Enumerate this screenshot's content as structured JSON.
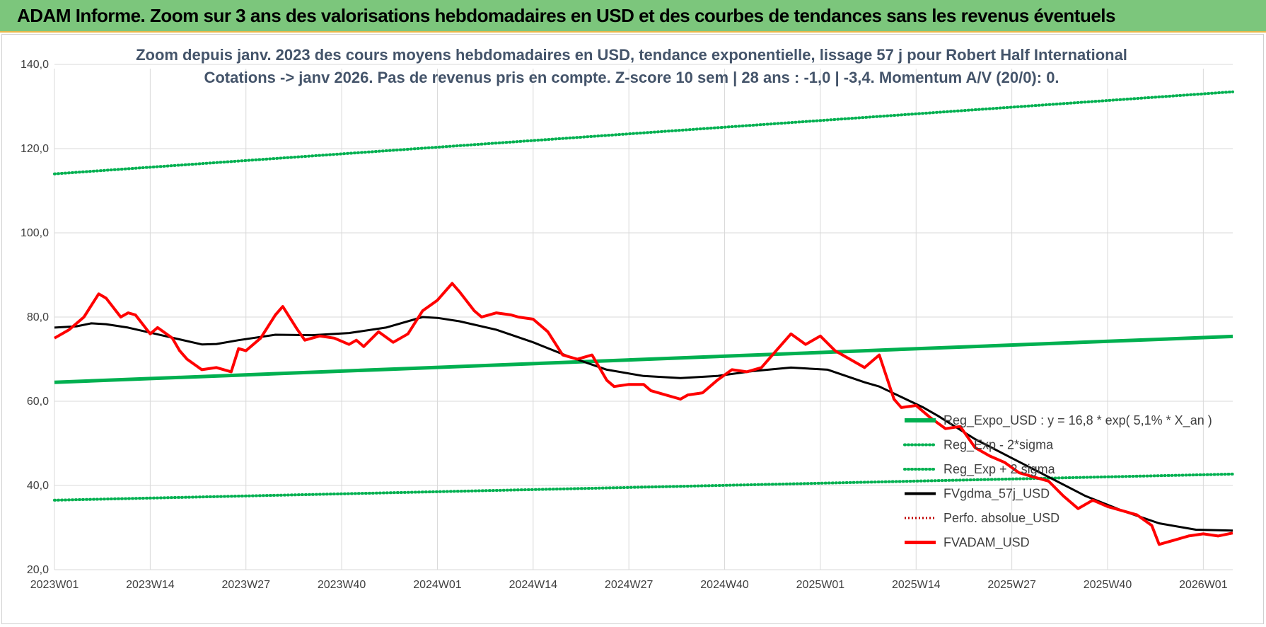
{
  "header": {
    "title": "ADAM Informe. Zoom sur 3 ans des valorisations hebdomadaires en USD et des courbes de tendances sans les revenus éventuels"
  },
  "colors": {
    "header_bg": "#7cc67c",
    "reg_green": "#00b050",
    "fvgdma_black": "#000000",
    "fvadam_red": "#ff0000",
    "perfo_red": "#c00000",
    "grid": "#d9d9d9",
    "title": "#44546a"
  },
  "chart_data": {
    "type": "line",
    "title_line1": "Zoom depuis janv. 2023 des cours moyens hebdomadaires en USD, tendance exponentielle, lissage 57 j pour Robert Half International",
    "title_line2": "Cotations -> janv 2026. Pas de revenus pris en compte. Z-score 10 sem | 28 ans : -1,0 | -3,4. Momentum A/V (20/0): 0.",
    "ylim": [
      20,
      140
    ],
    "y_ticks": [
      "20,0",
      "40,0",
      "60,0",
      "80,0",
      "100,0",
      "120,0",
      "140,0"
    ],
    "x_ticks": [
      "2023W01",
      "2023W14",
      "2023W27",
      "2023W40",
      "2024W01",
      "2024W14",
      "2024W27",
      "2024W40",
      "2025W01",
      "2025W14",
      "2025W27",
      "2025W40",
      "2026W01"
    ],
    "x_range_weeks": [
      0,
      160
    ],
    "legend_position": "right",
    "legend": [
      "Reg_Expo_USD : y = 16,8 * exp( 5,1% *  X_an )",
      "Reg_Exp - 2*sigma",
      "Reg_Exp + 2 sigma",
      "FVgdma_57j_USD",
      "Perfo. absolue_USD",
      "FVADAM_USD"
    ],
    "series": [
      {
        "name": "Reg_Expo_USD",
        "style": "solid-thick-green",
        "x": [
          0,
          160
        ],
        "values": [
          64.5,
          75.4
        ]
      },
      {
        "name": "Reg_Exp - 2*sigma",
        "style": "dotted-green",
        "x": [
          0,
          160
        ],
        "values": [
          36.5,
          42.7
        ]
      },
      {
        "name": "Reg_Exp + 2 sigma",
        "style": "dotted-green",
        "x": [
          0,
          160
        ],
        "values": [
          114.0,
          133.5
        ]
      },
      {
        "name": "FVgdma_57j_USD",
        "style": "solid-black",
        "x": [
          0,
          3,
          5,
          7,
          10,
          15,
          20,
          22,
          25,
          30,
          35,
          40,
          45,
          50,
          52,
          55,
          60,
          65,
          70,
          75,
          80,
          85,
          90,
          95,
          100,
          105,
          110,
          112,
          115,
          118,
          120,
          125,
          130,
          135,
          140,
          145,
          150,
          155,
          160
        ],
        "values": [
          77.5,
          77.8,
          78.5,
          78.3,
          77.5,
          75.5,
          73.5,
          73.6,
          74.5,
          75.8,
          75.7,
          76.2,
          77.5,
          80.0,
          79.8,
          79.0,
          77.0,
          74.0,
          70.5,
          67.5,
          66.0,
          65.5,
          66.0,
          67.2,
          68.0,
          67.5,
          64.5,
          63.5,
          61.0,
          58.5,
          56.5,
          51.0,
          46.5,
          42.0,
          37.5,
          34.0,
          31.0,
          29.5,
          29.3
        ]
      },
      {
        "name": "FVADAM_USD",
        "style": "solid-thick-red",
        "x": [
          0,
          2,
          4,
          6,
          7,
          9,
          10,
          11,
          13,
          14,
          16,
          17,
          18,
          20,
          22,
          24,
          25,
          26,
          28,
          30,
          31,
          33,
          34,
          36,
          38,
          40,
          41,
          42,
          44,
          46,
          48,
          50,
          52,
          54,
          55,
          57,
          58,
          60,
          62,
          63,
          65,
          67,
          69,
          71,
          73,
          75,
          76,
          78,
          80,
          81,
          83,
          85,
          86,
          88,
          90,
          92,
          94,
          96,
          98,
          100,
          102,
          104,
          106,
          108,
          110,
          112,
          114,
          115,
          117,
          119,
          121,
          123,
          125,
          127,
          129,
          131,
          133,
          135,
          137,
          139,
          141,
          143,
          145,
          147,
          149,
          150,
          152,
          154,
          156,
          158,
          160
        ],
        "values": [
          75,
          77,
          80,
          85.5,
          84.5,
          80,
          81,
          80.5,
          76,
          77.5,
          75,
          72,
          70,
          67.5,
          68,
          67,
          72.5,
          72,
          75,
          80.5,
          82.5,
          77,
          74.5,
          75.5,
          75,
          73.5,
          74.5,
          73,
          76.5,
          74,
          76,
          81.5,
          84,
          88,
          86,
          81.5,
          80,
          81,
          80.5,
          80,
          79.5,
          76.5,
          71,
          70,
          71,
          65,
          63.5,
          64,
          64,
          62.5,
          61.5,
          60.5,
          61.5,
          62,
          65,
          67.5,
          67,
          68,
          72,
          76,
          73.5,
          75.5,
          72,
          70,
          68,
          71,
          60.5,
          58.5,
          59,
          56,
          53.5,
          54,
          49,
          47,
          45.5,
          43,
          42,
          41,
          37.5,
          34.5,
          36.5,
          35,
          34,
          33,
          30.5,
          26,
          27,
          28,
          28.5,
          28,
          28.7
        ]
      }
    ]
  }
}
